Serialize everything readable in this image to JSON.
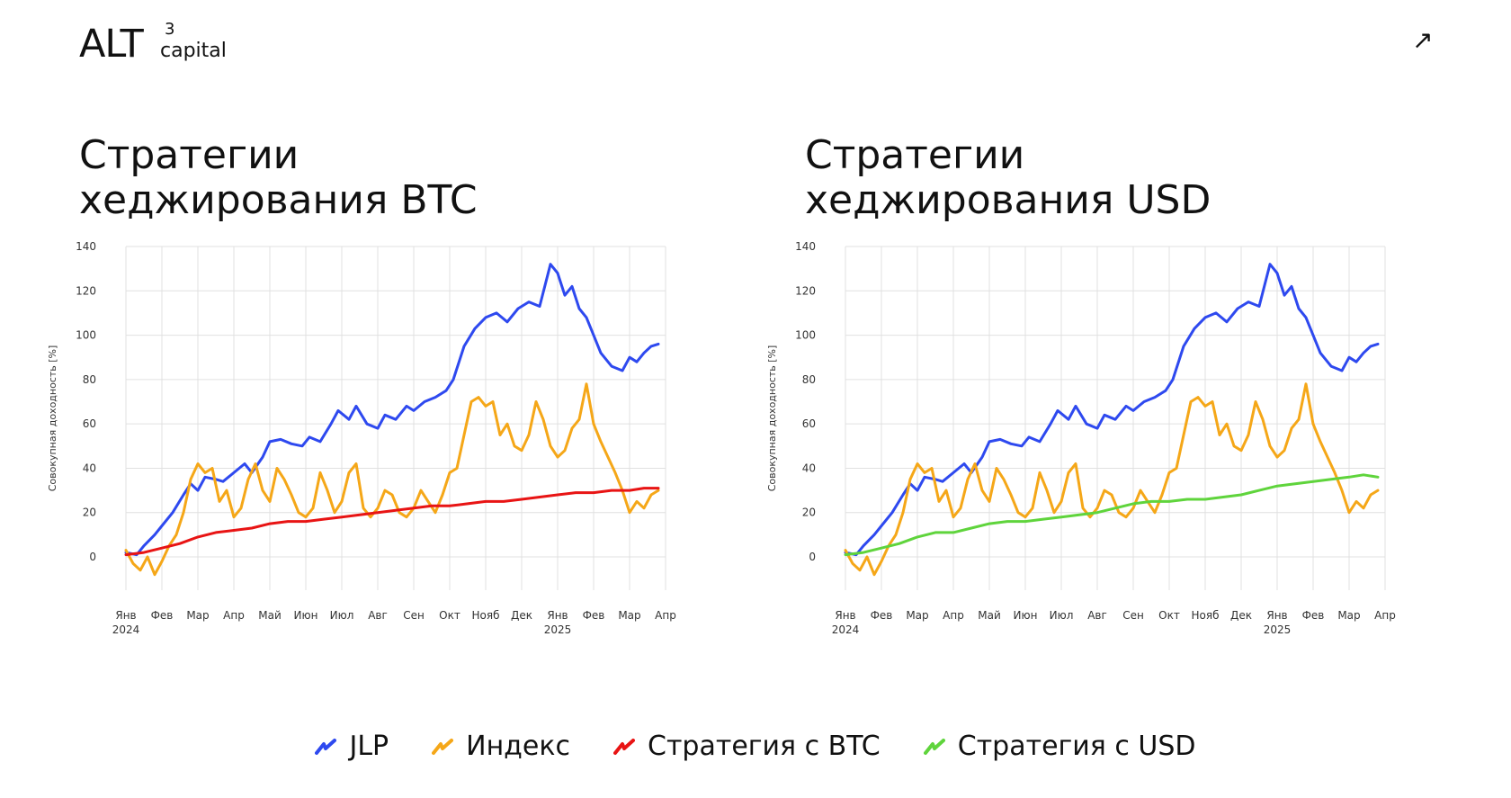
{
  "brand": {
    "main": "ALT",
    "sup": "3",
    "sub": "capital"
  },
  "arrow_icon": "↗",
  "legend": [
    {
      "label": "JLP",
      "color": "#2e49ef"
    },
    {
      "label": "Индекс",
      "color": "#f5a718"
    },
    {
      "label": "Стратегия с BTC",
      "color": "#e81414"
    },
    {
      "label": "Стратегия с USD",
      "color": "#5fd43c"
    }
  ],
  "chart_data": [
    {
      "type": "line",
      "title_lines": [
        "Стратегии",
        "хеджирования BTC"
      ],
      "ylabel": "Совокупная доходность [%]",
      "ylim": [
        -15,
        140
      ],
      "y_ticks": [
        0,
        20,
        40,
        60,
        80,
        100,
        120,
        140
      ],
      "x_ticks": [
        {
          "label": "Янв",
          "sub": "2024"
        },
        {
          "label": "Фев",
          "sub": ""
        },
        {
          "label": "Мар",
          "sub": ""
        },
        {
          "label": "Апр",
          "sub": ""
        },
        {
          "label": "Май",
          "sub": ""
        },
        {
          "label": "Июн",
          "sub": ""
        },
        {
          "label": "Июл",
          "sub": ""
        },
        {
          "label": "Авг",
          "sub": ""
        },
        {
          "label": "Сен",
          "sub": ""
        },
        {
          "label": "Окт",
          "sub": ""
        },
        {
          "label": "Нояб",
          "sub": ""
        },
        {
          "label": "Дек",
          "sub": ""
        },
        {
          "label": "Янв",
          "sub": "2025"
        },
        {
          "label": "Фев",
          "sub": ""
        },
        {
          "label": "Мар",
          "sub": ""
        },
        {
          "label": "Апр",
          "sub": ""
        }
      ],
      "grid": true,
      "series": [
        {
          "name": "JLP",
          "color": "#2e49ef",
          "x": [
            0,
            0.3,
            0.5,
            0.8,
            1.0,
            1.3,
            1.6,
            1.8,
            2.0,
            2.2,
            2.5,
            2.7,
            3.0,
            3.3,
            3.5,
            3.8,
            4.0,
            4.3,
            4.6,
            4.9,
            5.1,
            5.4,
            5.7,
            5.9,
            6.2,
            6.4,
            6.7,
            7.0,
            7.2,
            7.5,
            7.8,
            8.0,
            8.3,
            8.6,
            8.9,
            9.1,
            9.4,
            9.7,
            10.0,
            10.3,
            10.6,
            10.9,
            11.2,
            11.5,
            11.8,
            12.0,
            12.2,
            12.4,
            12.6,
            12.8,
            13.0,
            13.2,
            13.5,
            13.8,
            14.0,
            14.2,
            14.4,
            14.6,
            14.8
          ],
          "values": [
            2,
            1,
            5,
            10,
            14,
            20,
            28,
            33,
            30,
            36,
            35,
            34,
            38,
            42,
            38,
            45,
            52,
            53,
            51,
            50,
            54,
            52,
            60,
            66,
            62,
            68,
            60,
            58,
            64,
            62,
            68,
            66,
            70,
            72,
            75,
            80,
            95,
            103,
            108,
            110,
            106,
            112,
            115,
            113,
            132,
            128,
            118,
            122,
            112,
            108,
            100,
            92,
            86,
            84,
            90,
            88,
            92,
            95,
            96
          ]
        },
        {
          "name": "Индекс",
          "color": "#f5a718",
          "x": [
            0,
            0.2,
            0.4,
            0.6,
            0.8,
            1.0,
            1.2,
            1.4,
            1.6,
            1.8,
            2.0,
            2.2,
            2.4,
            2.6,
            2.8,
            3.0,
            3.2,
            3.4,
            3.6,
            3.8,
            4.0,
            4.2,
            4.4,
            4.6,
            4.8,
            5.0,
            5.2,
            5.4,
            5.6,
            5.8,
            6.0,
            6.2,
            6.4,
            6.6,
            6.8,
            7.0,
            7.2,
            7.4,
            7.6,
            7.8,
            8.0,
            8.2,
            8.4,
            8.6,
            8.8,
            9.0,
            9.2,
            9.4,
            9.6,
            9.8,
            10.0,
            10.2,
            10.4,
            10.6,
            10.8,
            11.0,
            11.2,
            11.4,
            11.6,
            11.8,
            12.0,
            12.2,
            12.4,
            12.6,
            12.8,
            13.0,
            13.2,
            13.4,
            13.6,
            13.8,
            14.0,
            14.2,
            14.4,
            14.6,
            14.8
          ],
          "values": [
            3,
            -3,
            -6,
            0,
            -8,
            -2,
            5,
            10,
            20,
            35,
            42,
            38,
            40,
            25,
            30,
            18,
            22,
            35,
            42,
            30,
            25,
            40,
            35,
            28,
            20,
            18,
            22,
            38,
            30,
            20,
            25,
            38,
            42,
            22,
            18,
            22,
            30,
            28,
            20,
            18,
            22,
            30,
            25,
            20,
            28,
            38,
            40,
            55,
            70,
            72,
            68,
            70,
            55,
            60,
            50,
            48,
            55,
            70,
            62,
            50,
            45,
            48,
            58,
            62,
            78,
            60,
            52,
            45,
            38,
            30,
            20,
            25,
            22,
            28,
            30
          ]
        },
        {
          "name": "Стратегия с BTC",
          "color": "#e81414",
          "x": [
            0,
            0.5,
            1.0,
            1.5,
            2.0,
            2.5,
            3.0,
            3.5,
            4.0,
            4.5,
            5.0,
            5.5,
            6.0,
            6.5,
            7.0,
            7.5,
            8.0,
            8.5,
            9.0,
            9.5,
            10.0,
            10.5,
            11.0,
            11.5,
            12.0,
            12.5,
            13.0,
            13.5,
            14.0,
            14.4,
            14.8
          ],
          "values": [
            1,
            2,
            4,
            6,
            9,
            11,
            12,
            13,
            15,
            16,
            16,
            17,
            18,
            19,
            20,
            21,
            22,
            23,
            23,
            24,
            25,
            25,
            26,
            27,
            28,
            29,
            29,
            30,
            30,
            31,
            31
          ]
        }
      ]
    },
    {
      "type": "line",
      "title_lines": [
        "Стратегии",
        "хеджирования USD"
      ],
      "ylabel": "Совокупная доходность [%]",
      "ylim": [
        -15,
        140
      ],
      "y_ticks": [
        0,
        20,
        40,
        60,
        80,
        100,
        120,
        140
      ],
      "x_ticks": [
        {
          "label": "Янв",
          "sub": "2024"
        },
        {
          "label": "Фев",
          "sub": ""
        },
        {
          "label": "Мар",
          "sub": ""
        },
        {
          "label": "Апр",
          "sub": ""
        },
        {
          "label": "Май",
          "sub": ""
        },
        {
          "label": "Июн",
          "sub": ""
        },
        {
          "label": "Июл",
          "sub": ""
        },
        {
          "label": "Авг",
          "sub": ""
        },
        {
          "label": "Сен",
          "sub": ""
        },
        {
          "label": "Окт",
          "sub": ""
        },
        {
          "label": "Нояб",
          "sub": ""
        },
        {
          "label": "Дек",
          "sub": ""
        },
        {
          "label": "Янв",
          "sub": "2025"
        },
        {
          "label": "Фев",
          "sub": ""
        },
        {
          "label": "Мар",
          "sub": ""
        },
        {
          "label": "Апр",
          "sub": ""
        }
      ],
      "grid": true,
      "series": [
        {
          "name": "JLP",
          "color": "#2e49ef",
          "x": [
            0,
            0.3,
            0.5,
            0.8,
            1.0,
            1.3,
            1.6,
            1.8,
            2.0,
            2.2,
            2.5,
            2.7,
            3.0,
            3.3,
            3.5,
            3.8,
            4.0,
            4.3,
            4.6,
            4.9,
            5.1,
            5.4,
            5.7,
            5.9,
            6.2,
            6.4,
            6.7,
            7.0,
            7.2,
            7.5,
            7.8,
            8.0,
            8.3,
            8.6,
            8.9,
            9.1,
            9.4,
            9.7,
            10.0,
            10.3,
            10.6,
            10.9,
            11.2,
            11.5,
            11.8,
            12.0,
            12.2,
            12.4,
            12.6,
            12.8,
            13.0,
            13.2,
            13.5,
            13.8,
            14.0,
            14.2,
            14.4,
            14.6,
            14.8
          ],
          "values": [
            2,
            1,
            5,
            10,
            14,
            20,
            28,
            33,
            30,
            36,
            35,
            34,
            38,
            42,
            38,
            45,
            52,
            53,
            51,
            50,
            54,
            52,
            60,
            66,
            62,
            68,
            60,
            58,
            64,
            62,
            68,
            66,
            70,
            72,
            75,
            80,
            95,
            103,
            108,
            110,
            106,
            112,
            115,
            113,
            132,
            128,
            118,
            122,
            112,
            108,
            100,
            92,
            86,
            84,
            90,
            88,
            92,
            95,
            96
          ]
        },
        {
          "name": "Индекс",
          "color": "#f5a718",
          "x": [
            0,
            0.2,
            0.4,
            0.6,
            0.8,
            1.0,
            1.2,
            1.4,
            1.6,
            1.8,
            2.0,
            2.2,
            2.4,
            2.6,
            2.8,
            3.0,
            3.2,
            3.4,
            3.6,
            3.8,
            4.0,
            4.2,
            4.4,
            4.6,
            4.8,
            5.0,
            5.2,
            5.4,
            5.6,
            5.8,
            6.0,
            6.2,
            6.4,
            6.6,
            6.8,
            7.0,
            7.2,
            7.4,
            7.6,
            7.8,
            8.0,
            8.2,
            8.4,
            8.6,
            8.8,
            9.0,
            9.2,
            9.4,
            9.6,
            9.8,
            10.0,
            10.2,
            10.4,
            10.6,
            10.8,
            11.0,
            11.2,
            11.4,
            11.6,
            11.8,
            12.0,
            12.2,
            12.4,
            12.6,
            12.8,
            13.0,
            13.2,
            13.4,
            13.6,
            13.8,
            14.0,
            14.2,
            14.4,
            14.6,
            14.8
          ],
          "values": [
            3,
            -3,
            -6,
            0,
            -8,
            -2,
            5,
            10,
            20,
            35,
            42,
            38,
            40,
            25,
            30,
            18,
            22,
            35,
            42,
            30,
            25,
            40,
            35,
            28,
            20,
            18,
            22,
            38,
            30,
            20,
            25,
            38,
            42,
            22,
            18,
            22,
            30,
            28,
            20,
            18,
            22,
            30,
            25,
            20,
            28,
            38,
            40,
            55,
            70,
            72,
            68,
            70,
            55,
            60,
            50,
            48,
            55,
            70,
            62,
            50,
            45,
            48,
            58,
            62,
            78,
            60,
            52,
            45,
            38,
            30,
            20,
            25,
            22,
            28,
            30
          ]
        },
        {
          "name": "Стратегия с USD",
          "color": "#5fd43c",
          "x": [
            0,
            0.5,
            1.0,
            1.5,
            2.0,
            2.5,
            3.0,
            3.5,
            4.0,
            4.5,
            5.0,
            5.5,
            6.0,
            6.5,
            7.0,
            7.5,
            8.0,
            8.5,
            9.0,
            9.5,
            10.0,
            10.5,
            11.0,
            11.5,
            12.0,
            12.5,
            13.0,
            13.5,
            14.0,
            14.4,
            14.8
          ],
          "values": [
            1,
            2,
            4,
            6,
            9,
            11,
            11,
            13,
            15,
            16,
            16,
            17,
            18,
            19,
            20,
            22,
            24,
            25,
            25,
            26,
            26,
            27,
            28,
            30,
            32,
            33,
            34,
            35,
            36,
            37,
            36
          ]
        }
      ]
    }
  ]
}
